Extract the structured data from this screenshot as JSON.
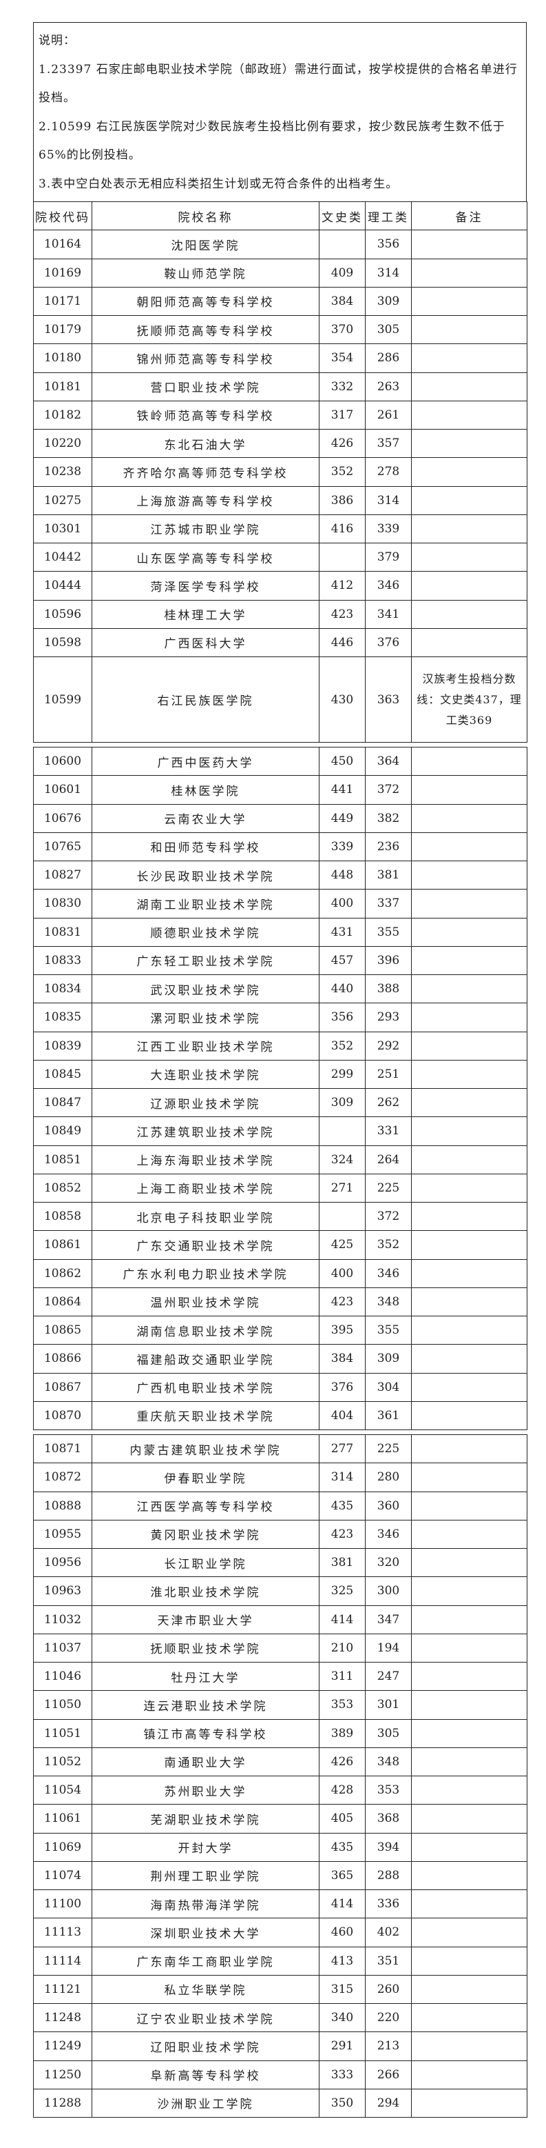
{
  "notes": {
    "title": "说明：",
    "items": [
      "1.23397 石家庄邮电职业技术学院（邮政班）需进行面试，按学校提供的合格名单进行投档。",
      "2.10599 右江民族医学院对少数民族考生投档比例有要求，按少数民族考生数不低于 65%的比例投档。",
      "3.表中空白处表示无相应科类招生计划或无符合条件的出档考生。"
    ]
  },
  "columns": [
    "院校代码",
    "院校名称",
    "文史类",
    "理工类",
    "备注"
  ],
  "sections": [
    [
      [
        "10164",
        "沈阳医学院",
        "",
        "356",
        ""
      ],
      [
        "10169",
        "鞍山师范学院",
        "409",
        "314",
        ""
      ],
      [
        "10171",
        "朝阳师范高等专科学校",
        "384",
        "309",
        ""
      ],
      [
        "10179",
        "抚顺师范高等专科学校",
        "370",
        "305",
        ""
      ],
      [
        "10180",
        "锦州师范高等专科学校",
        "354",
        "286",
        ""
      ],
      [
        "10181",
        "营口职业技术学院",
        "332",
        "263",
        ""
      ],
      [
        "10182",
        "铁岭师范高等专科学校",
        "317",
        "261",
        ""
      ],
      [
        "10220",
        "东北石油大学",
        "426",
        "357",
        ""
      ],
      [
        "10238",
        "齐齐哈尔高等师范专科学校",
        "352",
        "278",
        ""
      ],
      [
        "10275",
        "上海旅游高等专科学校",
        "386",
        "314",
        ""
      ],
      [
        "10301",
        "江苏城市职业学院",
        "416",
        "339",
        ""
      ],
      [
        "10442",
        "山东医学高等专科学校",
        "",
        "379",
        ""
      ],
      [
        "10444",
        "菏泽医学专科学校",
        "412",
        "346",
        ""
      ],
      [
        "10596",
        "桂林理工大学",
        "423",
        "341",
        ""
      ],
      [
        "10598",
        "广西医科大学",
        "446",
        "376",
        ""
      ],
      [
        "10599",
        "右江民族医学院",
        "430",
        "363",
        "汉族考生投档分数线：文史类437，理工类369"
      ]
    ],
    [
      [
        "10600",
        "广西中医药大学",
        "450",
        "364",
        ""
      ],
      [
        "10601",
        "桂林医学院",
        "441",
        "372",
        ""
      ],
      [
        "10676",
        "云南农业大学",
        "449",
        "382",
        ""
      ],
      [
        "10765",
        "和田师范专科学校",
        "339",
        "236",
        ""
      ],
      [
        "10827",
        "长沙民政职业技术学院",
        "448",
        "381",
        ""
      ],
      [
        "10830",
        "湖南工业职业技术学院",
        "400",
        "337",
        ""
      ],
      [
        "10831",
        "顺德职业技术学院",
        "431",
        "355",
        ""
      ],
      [
        "10833",
        "广东轻工职业技术学院",
        "457",
        "396",
        ""
      ],
      [
        "10834",
        "武汉职业技术学院",
        "440",
        "388",
        ""
      ],
      [
        "10835",
        "漯河职业技术学院",
        "356",
        "293",
        ""
      ],
      [
        "10839",
        "江西工业职业技术学院",
        "352",
        "292",
        ""
      ],
      [
        "10845",
        "大连职业技术学院",
        "299",
        "251",
        ""
      ],
      [
        "10847",
        "辽源职业技术学院",
        "309",
        "262",
        ""
      ],
      [
        "10849",
        "江苏建筑职业技术学院",
        "",
        "331",
        ""
      ],
      [
        "10851",
        "上海东海职业技术学院",
        "324",
        "264",
        ""
      ],
      [
        "10852",
        "上海工商职业技术学院",
        "271",
        "225",
        ""
      ],
      [
        "10858",
        "北京电子科技职业学院",
        "",
        "372",
        ""
      ],
      [
        "10861",
        "广东交通职业技术学院",
        "425",
        "352",
        ""
      ],
      [
        "10862",
        "广东水利电力职业技术学院",
        "400",
        "346",
        ""
      ],
      [
        "10864",
        "温州职业技术学院",
        "423",
        "348",
        ""
      ],
      [
        "10865",
        "湖南信息职业技术学院",
        "395",
        "355",
        ""
      ],
      [
        "10866",
        "福建船政交通职业学院",
        "384",
        "309",
        ""
      ],
      [
        "10867",
        "广西机电职业技术学院",
        "376",
        "304",
        ""
      ],
      [
        "10870",
        "重庆航天职业技术学院",
        "404",
        "361",
        ""
      ]
    ],
    [
      [
        "10871",
        "内蒙古建筑职业技术学院",
        "277",
        "225",
        ""
      ],
      [
        "10872",
        "伊春职业学院",
        "314",
        "280",
        ""
      ],
      [
        "10888",
        "江西医学高等专科学校",
        "435",
        "360",
        ""
      ],
      [
        "10955",
        "黄冈职业技术学院",
        "423",
        "346",
        ""
      ],
      [
        "10956",
        "长江职业学院",
        "381",
        "320",
        ""
      ],
      [
        "10963",
        "淮北职业技术学院",
        "325",
        "300",
        ""
      ],
      [
        "11032",
        "天津市职业大学",
        "414",
        "347",
        ""
      ],
      [
        "11037",
        "抚顺职业技术学院",
        "210",
        "194",
        ""
      ],
      [
        "11046",
        "牡丹江大学",
        "311",
        "247",
        ""
      ],
      [
        "11050",
        "连云港职业技术学院",
        "353",
        "301",
        ""
      ],
      [
        "11051",
        "镇江市高等专科学校",
        "389",
        "305",
        ""
      ],
      [
        "11052",
        "南通职业大学",
        "426",
        "348",
        ""
      ],
      [
        "11054",
        "苏州职业大学",
        "428",
        "353",
        ""
      ],
      [
        "11061",
        "芜湖职业技术学院",
        "405",
        "368",
        ""
      ],
      [
        "11069",
        "开封大学",
        "435",
        "394",
        ""
      ],
      [
        "11074",
        "荆州理工职业学院",
        "365",
        "288",
        ""
      ],
      [
        "11100",
        "海南热带海洋学院",
        "414",
        "336",
        ""
      ],
      [
        "11113",
        "深圳职业技术大学",
        "460",
        "402",
        ""
      ],
      [
        "11114",
        "广东南华工商职业学院",
        "413",
        "351",
        ""
      ],
      [
        "11121",
        "私立华联学院",
        "315",
        "260",
        ""
      ],
      [
        "11248",
        "辽宁农业职业技术学院",
        "340",
        "220",
        ""
      ],
      [
        "11249",
        "辽阳职业技术学院",
        "291",
        "213",
        ""
      ],
      [
        "11250",
        "阜新高等专科学校",
        "333",
        "266",
        ""
      ],
      [
        "11288",
        "沙洲职业工学院",
        "350",
        "294",
        ""
      ]
    ]
  ]
}
